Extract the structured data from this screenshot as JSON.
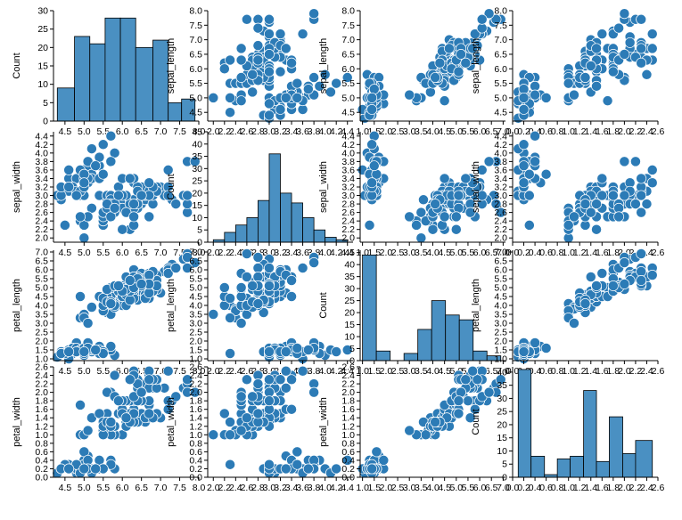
{
  "chart_data": {
    "type": "scatter",
    "title": "",
    "variables": [
      "sepal_length",
      "sepal_width",
      "petal_length",
      "petal_width"
    ],
    "count_label": "Count",
    "colors": {
      "marker": "#2c7bb6",
      "bar": "#4a90c2",
      "axis": "#000000"
    },
    "ranges": {
      "sepal_length": [
        4.2,
        8.0
      ],
      "sepal_width": [
        1.9,
        4.5
      ],
      "petal_length": [
        0.9,
        7.1
      ],
      "petal_width": [
        0.0,
        2.6
      ]
    },
    "ticks": {
      "sepal_length": [
        {
          "v": 4.5,
          "t": "4.5"
        },
        {
          "v": 5.0,
          "t": "5.0"
        },
        {
          "v": 5.5,
          "t": "5.5"
        },
        {
          "v": 6.0,
          "t": "6.0"
        },
        {
          "v": 6.5,
          "t": "6.5"
        },
        {
          "v": 7.0,
          "t": "7.0"
        },
        {
          "v": 7.5,
          "t": "7.5"
        },
        {
          "v": 8.0,
          "t": "8.0"
        }
      ],
      "sepal_width": [
        {
          "v": 2.0,
          "t": "2.0"
        },
        {
          "v": 2.2,
          "t": "2.2"
        },
        {
          "v": 2.4,
          "t": "2.4"
        },
        {
          "v": 2.6,
          "t": "2.6"
        },
        {
          "v": 2.8,
          "t": "2.8"
        },
        {
          "v": 3.0,
          "t": "3.0"
        },
        {
          "v": 3.2,
          "t": "3.2"
        },
        {
          "v": 3.4,
          "t": "3.4"
        },
        {
          "v": 3.6,
          "t": "3.6"
        },
        {
          "v": 3.8,
          "t": "3.8"
        },
        {
          "v": 4.0,
          "t": "4.0"
        },
        {
          "v": 4.2,
          "t": "4.2"
        },
        {
          "v": 4.4,
          "t": "4.4"
        }
      ],
      "petal_length": [
        {
          "v": 1.0,
          "t": "1.0"
        },
        {
          "v": 1.5,
          "t": "1.5"
        },
        {
          "v": 2.0,
          "t": "2.0"
        },
        {
          "v": 2.5,
          "t": "2.5"
        },
        {
          "v": 3.0,
          "t": "3.0"
        },
        {
          "v": 3.5,
          "t": "3.5"
        },
        {
          "v": 4.0,
          "t": "4.0"
        },
        {
          "v": 4.5,
          "t": "4.5"
        },
        {
          "v": 5.0,
          "t": "5.0"
        },
        {
          "v": 5.5,
          "t": "5.5"
        },
        {
          "v": 6.0,
          "t": "6.0"
        },
        {
          "v": 6.5,
          "t": "6.5"
        },
        {
          "v": 7.0,
          "t": "7.0"
        }
      ],
      "petal_width": [
        {
          "v": 0.0,
          "t": "0.0"
        },
        {
          "v": 0.2,
          "t": "0.2"
        },
        {
          "v": 0.4,
          "t": "0.4"
        },
        {
          "v": 0.6,
          "t": "0.6"
        },
        {
          "v": 0.8,
          "t": "0.8"
        },
        {
          "v": 1.0,
          "t": "1.0"
        },
        {
          "v": 1.2,
          "t": "1.2"
        },
        {
          "v": 1.4,
          "t": "1.4"
        },
        {
          "v": 1.6,
          "t": "1.6"
        },
        {
          "v": 1.8,
          "t": "1.8"
        },
        {
          "v": 2.0,
          "t": "2.0"
        },
        {
          "v": 2.2,
          "t": "2.2"
        },
        {
          "v": 2.4,
          "t": "2.4"
        },
        {
          "v": 2.6,
          "t": "2.6"
        }
      ]
    },
    "count_ticks": [
      {
        "v": 0,
        "t": "0"
      },
      {
        "v": 5,
        "t": "5"
      },
      {
        "v": 10,
        "t": "10"
      },
      {
        "v": 15,
        "t": "15"
      },
      {
        "v": 20,
        "t": "20"
      },
      {
        "v": 25,
        "t": "25"
      },
      {
        "v": 30,
        "t": "30"
      },
      {
        "v": 35,
        "t": "35"
      },
      {
        "v": 40,
        "t": "40"
      },
      {
        "v": 45,
        "t": "45"
      }
    ],
    "histograms": {
      "sepal_length": {
        "bins": [
          [
            4.3,
            4.75,
            9
          ],
          [
            4.75,
            5.15,
            23
          ],
          [
            5.15,
            5.55,
            21
          ],
          [
            5.55,
            5.95,
            28
          ],
          [
            5.95,
            6.35,
            28
          ],
          [
            6.35,
            6.8,
            20
          ],
          [
            6.8,
            7.2,
            22
          ],
          [
            7.2,
            7.55,
            5
          ],
          [
            7.55,
            7.9,
            6
          ]
        ],
        "max": 30
      },
      "sepal_width": {
        "bins": [
          [
            2.0,
            2.2,
            1
          ],
          [
            2.2,
            2.4,
            4
          ],
          [
            2.4,
            2.6,
            7
          ],
          [
            2.6,
            2.8,
            10
          ],
          [
            2.8,
            3.0,
            17
          ],
          [
            3.0,
            3.2,
            36
          ],
          [
            3.2,
            3.4,
            20
          ],
          [
            3.4,
            3.6,
            16
          ],
          [
            3.6,
            3.8,
            10
          ],
          [
            3.8,
            4.0,
            5
          ],
          [
            4.0,
            4.2,
            2
          ],
          [
            4.2,
            4.4,
            1
          ]
        ],
        "max": 45
      },
      "petal_length": {
        "bins": [
          [
            1.0,
            1.59,
            44
          ],
          [
            1.59,
            2.18,
            4
          ],
          [
            2.18,
            2.77,
            0
          ],
          [
            2.77,
            3.36,
            3
          ],
          [
            3.36,
            3.95,
            13
          ],
          [
            3.95,
            4.54,
            25
          ],
          [
            4.54,
            5.13,
            19
          ],
          [
            5.13,
            5.72,
            17
          ],
          [
            5.72,
            6.31,
            4
          ],
          [
            6.31,
            6.9,
            2
          ]
        ],
        "max": 46
      },
      "petal_width": {
        "bins": [
          [
            0.1,
            0.33,
            41
          ],
          [
            0.33,
            0.57,
            8
          ],
          [
            0.57,
            0.8,
            1
          ],
          [
            0.8,
            1.03,
            7
          ],
          [
            1.03,
            1.27,
            8
          ],
          [
            1.27,
            1.5,
            33
          ],
          [
            1.5,
            1.73,
            6
          ],
          [
            1.73,
            1.97,
            23
          ],
          [
            1.97,
            2.2,
            9
          ],
          [
            2.2,
            2.5,
            14
          ]
        ],
        "max": 42
      }
    },
    "data": [
      [
        5.1,
        3.5,
        1.4,
        0.2
      ],
      [
        4.9,
        3.0,
        1.4,
        0.2
      ],
      [
        4.7,
        3.2,
        1.3,
        0.2
      ],
      [
        4.6,
        3.1,
        1.5,
        0.2
      ],
      [
        5.0,
        3.6,
        1.4,
        0.2
      ],
      [
        5.4,
        3.9,
        1.7,
        0.4
      ],
      [
        4.6,
        3.4,
        1.4,
        0.3
      ],
      [
        5.0,
        3.4,
        1.5,
        0.2
      ],
      [
        4.4,
        2.9,
        1.4,
        0.2
      ],
      [
        4.9,
        3.1,
        1.5,
        0.1
      ],
      [
        5.4,
        3.7,
        1.5,
        0.2
      ],
      [
        4.8,
        3.4,
        1.6,
        0.2
      ],
      [
        4.8,
        3.0,
        1.4,
        0.1
      ],
      [
        4.3,
        3.0,
        1.1,
        0.1
      ],
      [
        5.8,
        4.0,
        1.2,
        0.2
      ],
      [
        5.7,
        4.4,
        1.5,
        0.4
      ],
      [
        5.4,
        3.9,
        1.3,
        0.4
      ],
      [
        5.1,
        3.5,
        1.4,
        0.3
      ],
      [
        5.7,
        3.8,
        1.7,
        0.3
      ],
      [
        5.1,
        3.8,
        1.5,
        0.3
      ],
      [
        5.4,
        3.4,
        1.7,
        0.2
      ],
      [
        5.1,
        3.7,
        1.5,
        0.4
      ],
      [
        4.6,
        3.6,
        1.0,
        0.2
      ],
      [
        5.1,
        3.3,
        1.7,
        0.5
      ],
      [
        4.8,
        3.4,
        1.9,
        0.2
      ],
      [
        5.0,
        3.0,
        1.6,
        0.2
      ],
      [
        5.0,
        3.4,
        1.6,
        0.4
      ],
      [
        5.2,
        3.5,
        1.5,
        0.2
      ],
      [
        5.2,
        3.4,
        1.4,
        0.2
      ],
      [
        4.7,
        3.2,
        1.6,
        0.2
      ],
      [
        4.8,
        3.1,
        1.6,
        0.2
      ],
      [
        5.4,
        3.4,
        1.5,
        0.4
      ],
      [
        5.2,
        4.1,
        1.5,
        0.1
      ],
      [
        5.5,
        4.2,
        1.4,
        0.2
      ],
      [
        4.9,
        3.1,
        1.5,
        0.2
      ],
      [
        5.0,
        3.2,
        1.2,
        0.2
      ],
      [
        5.5,
        3.5,
        1.3,
        0.2
      ],
      [
        4.9,
        3.6,
        1.4,
        0.1
      ],
      [
        4.4,
        3.0,
        1.3,
        0.2
      ],
      [
        5.1,
        3.4,
        1.5,
        0.2
      ],
      [
        5.0,
        3.5,
        1.3,
        0.3
      ],
      [
        4.5,
        2.3,
        1.3,
        0.3
      ],
      [
        4.4,
        3.2,
        1.3,
        0.2
      ],
      [
        5.0,
        3.5,
        1.6,
        0.6
      ],
      [
        5.1,
        3.8,
        1.9,
        0.4
      ],
      [
        4.8,
        3.0,
        1.4,
        0.3
      ],
      [
        5.1,
        3.8,
        1.6,
        0.2
      ],
      [
        4.6,
        3.2,
        1.4,
        0.2
      ],
      [
        5.3,
        3.7,
        1.5,
        0.2
      ],
      [
        5.0,
        3.3,
        1.4,
        0.2
      ],
      [
        7.0,
        3.2,
        4.7,
        1.4
      ],
      [
        6.4,
        3.2,
        4.5,
        1.5
      ],
      [
        6.9,
        3.1,
        4.9,
        1.5
      ],
      [
        5.5,
        2.3,
        4.0,
        1.3
      ],
      [
        6.5,
        2.8,
        4.6,
        1.5
      ],
      [
        5.7,
        2.8,
        4.5,
        1.3
      ],
      [
        6.3,
        3.3,
        4.7,
        1.6
      ],
      [
        4.9,
        2.4,
        3.3,
        1.0
      ],
      [
        6.6,
        2.9,
        4.6,
        1.3
      ],
      [
        5.2,
        2.7,
        3.9,
        1.4
      ],
      [
        5.0,
        2.0,
        3.5,
        1.0
      ],
      [
        5.9,
        3.0,
        4.2,
        1.5
      ],
      [
        6.0,
        2.2,
        4.0,
        1.0
      ],
      [
        6.1,
        2.9,
        4.7,
        1.4
      ],
      [
        5.6,
        2.9,
        3.6,
        1.3
      ],
      [
        6.7,
        3.1,
        4.4,
        1.4
      ],
      [
        5.6,
        3.0,
        4.5,
        1.5
      ],
      [
        5.8,
        2.7,
        4.1,
        1.0
      ],
      [
        6.2,
        2.2,
        4.5,
        1.5
      ],
      [
        5.6,
        2.5,
        3.9,
        1.1
      ],
      [
        5.9,
        3.2,
        4.8,
        1.8
      ],
      [
        6.1,
        2.8,
        4.0,
        1.3
      ],
      [
        6.3,
        2.5,
        4.9,
        1.5
      ],
      [
        6.1,
        2.8,
        4.7,
        1.2
      ],
      [
        6.4,
        2.9,
        4.3,
        1.3
      ],
      [
        6.6,
        3.0,
        4.4,
        1.4
      ],
      [
        6.8,
        2.8,
        4.8,
        1.4
      ],
      [
        6.7,
        3.0,
        5.0,
        1.7
      ],
      [
        6.0,
        2.9,
        4.5,
        1.5
      ],
      [
        5.7,
        2.6,
        3.5,
        1.0
      ],
      [
        5.5,
        2.4,
        3.8,
        1.1
      ],
      [
        5.5,
        2.4,
        3.7,
        1.0
      ],
      [
        5.8,
        2.7,
        3.9,
        1.2
      ],
      [
        6.0,
        2.7,
        5.1,
        1.6
      ],
      [
        5.4,
        3.0,
        4.5,
        1.5
      ],
      [
        6.0,
        3.4,
        4.5,
        1.6
      ],
      [
        6.7,
        3.1,
        4.7,
        1.5
      ],
      [
        6.3,
        2.3,
        4.4,
        1.3
      ],
      [
        5.6,
        3.0,
        4.1,
        1.3
      ],
      [
        5.5,
        2.5,
        4.0,
        1.3
      ],
      [
        5.5,
        2.6,
        4.4,
        1.2
      ],
      [
        6.1,
        3.0,
        4.6,
        1.4
      ],
      [
        5.8,
        2.6,
        4.0,
        1.2
      ],
      [
        5.0,
        2.3,
        3.3,
        1.0
      ],
      [
        5.6,
        2.7,
        4.2,
        1.3
      ],
      [
        5.7,
        3.0,
        4.2,
        1.2
      ],
      [
        5.7,
        2.9,
        4.2,
        1.3
      ],
      [
        6.2,
        2.9,
        4.3,
        1.3
      ],
      [
        5.1,
        2.5,
        3.0,
        1.1
      ],
      [
        5.7,
        2.8,
        4.1,
        1.3
      ],
      [
        6.3,
        3.3,
        6.0,
        2.5
      ],
      [
        5.8,
        2.7,
        5.1,
        1.9
      ],
      [
        7.1,
        3.0,
        5.9,
        2.1
      ],
      [
        6.3,
        2.9,
        5.6,
        1.8
      ],
      [
        6.5,
        3.0,
        5.8,
        2.2
      ],
      [
        7.6,
        3.0,
        6.6,
        2.1
      ],
      [
        4.9,
        2.5,
        4.5,
        1.7
      ],
      [
        7.3,
        2.9,
        6.3,
        1.8
      ],
      [
        6.7,
        2.5,
        5.8,
        1.8
      ],
      [
        7.2,
        3.6,
        6.1,
        2.5
      ],
      [
        6.5,
        3.2,
        5.1,
        2.0
      ],
      [
        6.4,
        2.7,
        5.3,
        1.9
      ],
      [
        6.8,
        3.0,
        5.5,
        2.1
      ],
      [
        5.7,
        2.5,
        5.0,
        2.0
      ],
      [
        5.8,
        2.8,
        5.1,
        2.4
      ],
      [
        6.4,
        3.2,
        5.3,
        2.3
      ],
      [
        6.5,
        3.0,
        5.5,
        1.8
      ],
      [
        7.7,
        3.8,
        6.7,
        2.2
      ],
      [
        7.7,
        2.6,
        6.9,
        2.3
      ],
      [
        6.0,
        2.2,
        5.0,
        1.5
      ],
      [
        6.9,
        3.2,
        5.7,
        2.3
      ],
      [
        5.6,
        2.8,
        4.9,
        2.0
      ],
      [
        7.7,
        2.8,
        6.7,
        2.0
      ],
      [
        6.3,
        2.7,
        4.9,
        1.8
      ],
      [
        6.7,
        3.3,
        5.7,
        2.1
      ],
      [
        7.2,
        3.2,
        6.0,
        1.8
      ],
      [
        6.2,
        2.8,
        4.8,
        1.8
      ],
      [
        6.1,
        3.0,
        4.9,
        1.8
      ],
      [
        6.4,
        2.8,
        5.6,
        2.1
      ],
      [
        7.2,
        3.0,
        5.8,
        1.6
      ],
      [
        7.4,
        2.8,
        6.1,
        1.9
      ],
      [
        7.9,
        3.8,
        6.4,
        2.0
      ],
      [
        6.4,
        2.8,
        5.6,
        2.2
      ],
      [
        6.3,
        2.8,
        5.1,
        1.5
      ],
      [
        6.1,
        2.6,
        5.6,
        1.4
      ],
      [
        7.7,
        3.0,
        6.1,
        2.3
      ],
      [
        6.3,
        3.4,
        5.6,
        2.4
      ],
      [
        6.4,
        3.1,
        5.5,
        1.8
      ],
      [
        6.0,
        3.0,
        4.8,
        1.8
      ],
      [
        6.9,
        3.1,
        5.4,
        2.1
      ],
      [
        6.7,
        3.1,
        5.6,
        2.4
      ],
      [
        6.9,
        3.1,
        5.1,
        2.3
      ],
      [
        5.8,
        2.7,
        5.1,
        1.9
      ],
      [
        6.8,
        3.2,
        5.9,
        2.3
      ],
      [
        6.7,
        3.3,
        5.7,
        2.5
      ],
      [
        6.7,
        3.0,
        5.2,
        2.3
      ],
      [
        6.3,
        2.5,
        5.0,
        1.9
      ],
      [
        6.5,
        3.0,
        5.2,
        2.0
      ],
      [
        6.2,
        3.4,
        5.4,
        2.3
      ],
      [
        5.9,
        3.0,
        5.1,
        1.8
      ]
    ]
  }
}
